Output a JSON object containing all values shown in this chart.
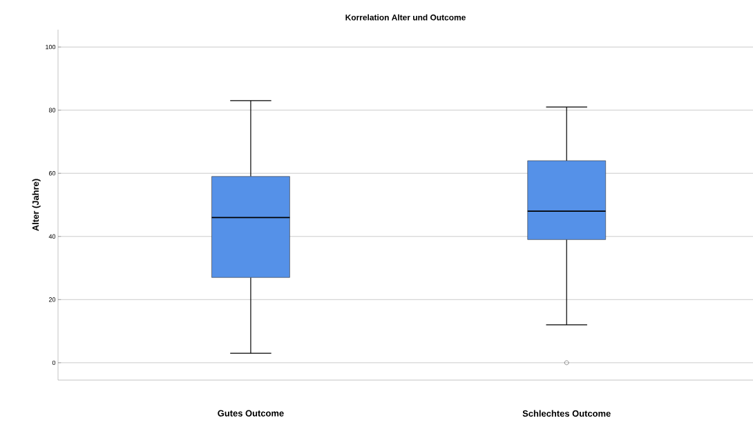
{
  "chart_data": {
    "type": "box",
    "title": "Korrelation Alter und Outcome",
    "ylabel": "Alter (Jahre)",
    "categories": [
      "Gutes Outcome",
      "Schlechtes Outcome"
    ],
    "boxes": [
      {
        "low": 3,
        "q1": 27,
        "median": 46,
        "q3": 59,
        "high": 83
      },
      {
        "low": 12,
        "q1": 39,
        "median": 48,
        "q3": 64,
        "high": 81,
        "outliers": [
          0
        ]
      }
    ],
    "color": "#5591e8",
    "ylim": [
      -5.5,
      105.5
    ],
    "yticks": [
      0,
      20,
      40,
      60,
      80,
      100
    ],
    "grid": "y"
  }
}
